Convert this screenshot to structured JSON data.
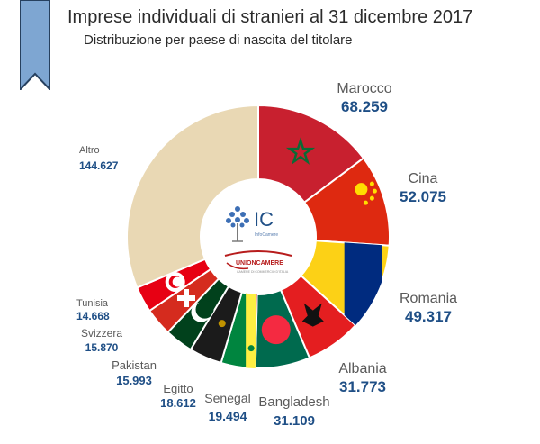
{
  "header": {
    "title": "Imprese individuali di stranieri al 31 dicembre 2017",
    "subtitle": "Distribuzione per paese di nascita del titolare"
  },
  "center_logo": {
    "monogram": "IC",
    "brand_small": "InfoCamere",
    "org": "UNIONCAMERE",
    "org_small": "CAMERE DI COMMERCIO D'ITALIA"
  },
  "colors": {
    "accent": "#1f4f86",
    "ribbon": "#7ea6d2",
    "altro": "#e9d8b4"
  },
  "chart_data": {
    "type": "pie",
    "title": "Imprese individuali di stranieri al 31 dicembre 2017",
    "subtitle": "Distribuzione per paese di nascita del titolare",
    "categories": [
      "Marocco",
      "Cina",
      "Romania",
      "Albania",
      "Bangladesh",
      "Senegal",
      "Egitto",
      "Pakistan",
      "Svizzera",
      "Tunisia",
      "Altro"
    ],
    "values": [
      68259,
      52075,
      49317,
      31773,
      31109,
      19494,
      18612,
      15993,
      15870,
      14668,
      144627
    ],
    "value_labels": [
      "68.259",
      "52.075",
      "49.317",
      "31.773",
      "31.109",
      "19.494",
      "18.612",
      "15.993",
      "15.870",
      "14.668",
      "144.627"
    ],
    "donut": true,
    "legend": "none"
  }
}
